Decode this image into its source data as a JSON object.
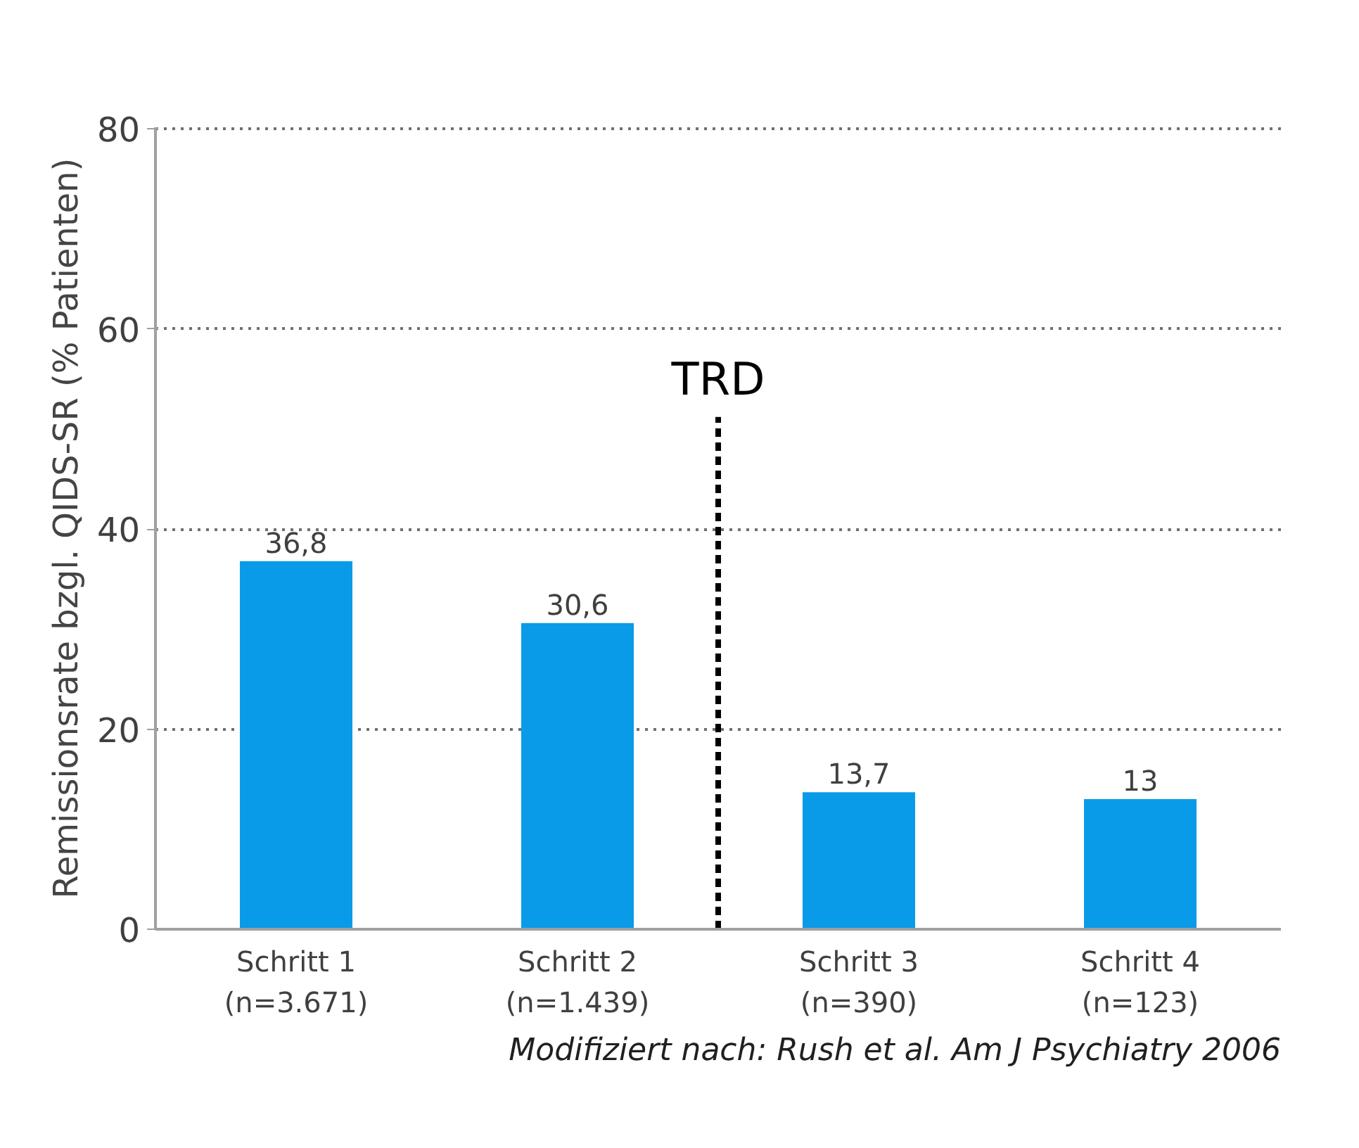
{
  "chart_data": {
    "type": "bar",
    "ylabel": "Remissionsrate bzgl. QIDS-SR (% Patienten)",
    "categories": [
      "Schritt 1\n(n=3.671)",
      "Schritt 2\n(n=1.439)",
      "Schritt 3\n(n=390)",
      "Schritt 4\n(n=123)"
    ],
    "values": [
      36.8,
      30.6,
      13.7,
      13
    ],
    "color": "#0a9be8",
    "value_labels": [
      "36,8",
      "30,6",
      "13,7",
      "13"
    ],
    "ylim": [
      0,
      80
    ],
    "yticks": [
      0,
      20,
      40,
      60,
      80
    ],
    "grid": "y",
    "annotations": [
      "TRD",
      "Modifiziert nach: Rush et al. Am J Psychiatry 2006"
    ]
  }
}
